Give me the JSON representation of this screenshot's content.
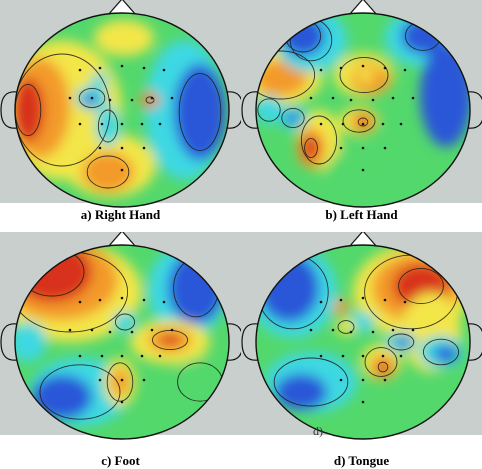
{
  "panels": [
    {
      "label": "a) Right Hand",
      "scheme": "right"
    },
    {
      "label": "b) Left Hand",
      "scheme": "left"
    },
    {
      "label": "c) Foot",
      "scheme": "foot"
    },
    {
      "label": "d) Tongue",
      "scheme": "tongue"
    }
  ],
  "stray_mark": "d)",
  "colors": {
    "background": "#c8cfcd",
    "outline": "#111111",
    "red": "#d8301a",
    "orange": "#f39a2c",
    "yellow": "#f3e64a",
    "green": "#53d86c",
    "cyan": "#3dd8e3",
    "blue": "#2a57d8"
  }
}
